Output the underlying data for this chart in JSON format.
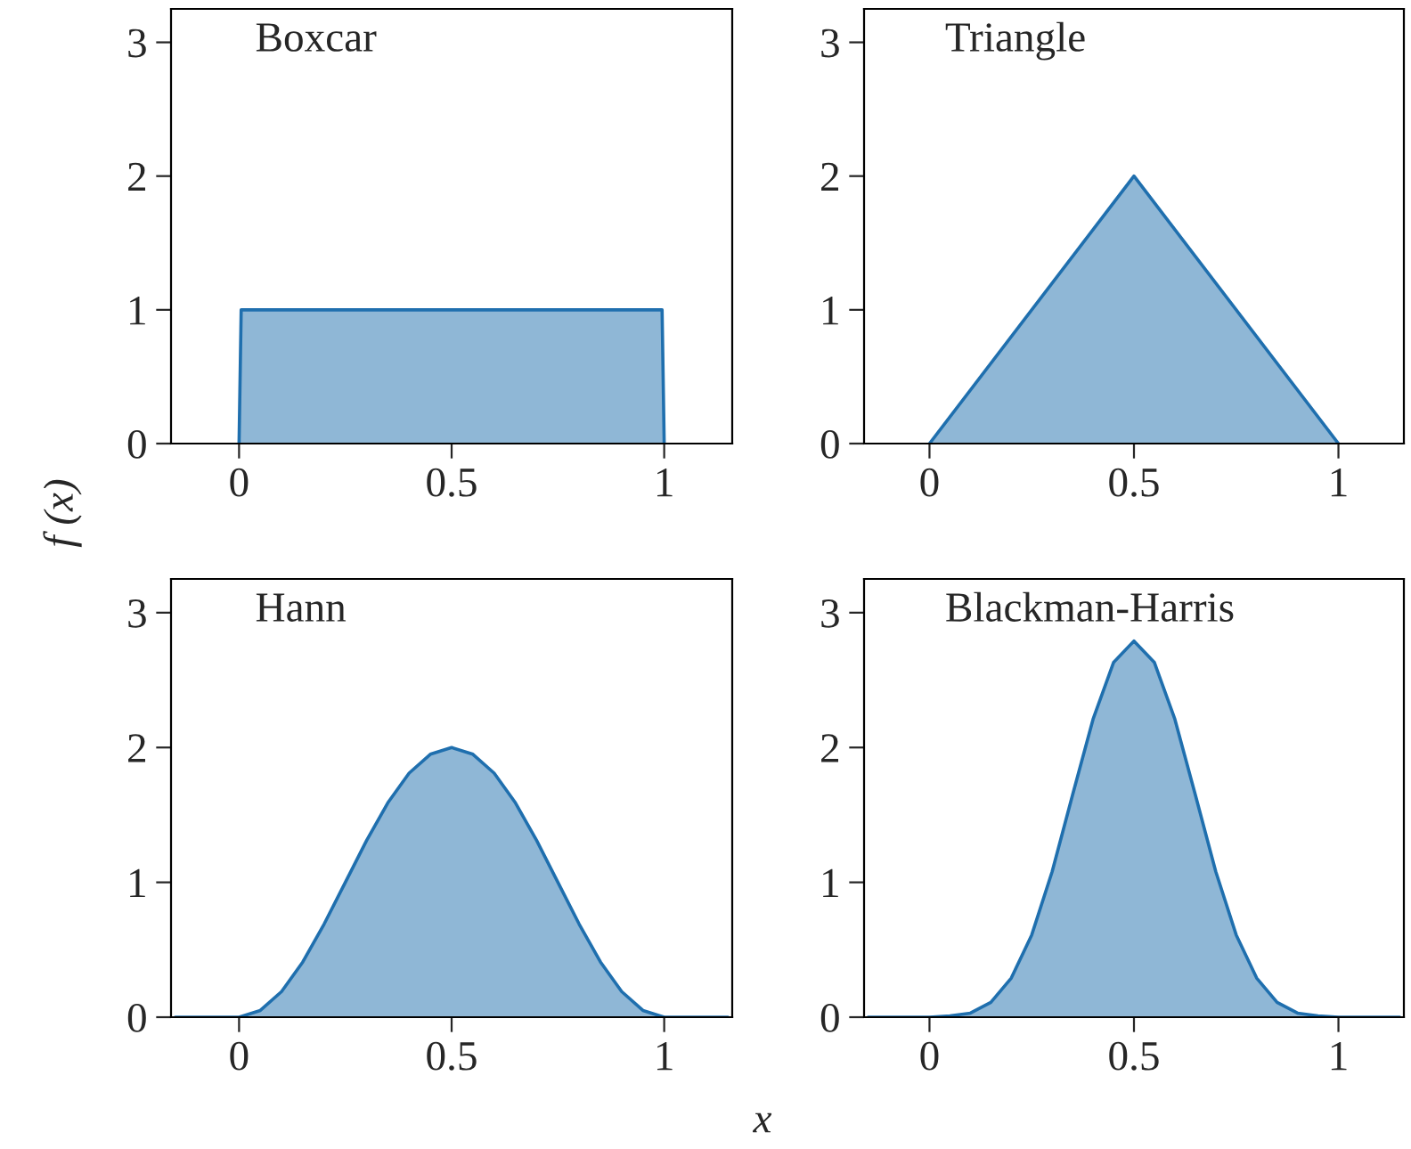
{
  "chart_data": [
    {
      "type": "area",
      "title": "Boxcar",
      "ylabel": "f (x)",
      "xlim": [
        -0.16,
        1.16
      ],
      "ylim": [
        0,
        3.25
      ],
      "xticks": [
        0,
        0.5,
        1
      ],
      "yticks": [
        0,
        1,
        2,
        3
      ],
      "grid": false,
      "legend": false,
      "series": [
        {
          "color": "#1f6fae",
          "x": [
            0,
            0.005,
            0.995,
            1
          ],
          "values": [
            0,
            1,
            1,
            0
          ]
        }
      ]
    },
    {
      "type": "area",
      "title": "Triangle",
      "xlim": [
        -0.16,
        1.16
      ],
      "ylim": [
        0,
        3.25
      ],
      "xticks": [
        0,
        0.5,
        1
      ],
      "yticks": [
        0,
        1,
        2,
        3
      ],
      "grid": false,
      "legend": false,
      "series": [
        {
          "color": "#1f6fae",
          "x": [
            0,
            0.5,
            1
          ],
          "values": [
            0,
            2,
            0
          ]
        }
      ]
    },
    {
      "type": "area",
      "title": "Hann",
      "xlabel": "x",
      "xlim": [
        -0.16,
        1.16
      ],
      "ylim": [
        0,
        3.25
      ],
      "xticks": [
        0,
        0.5,
        1
      ],
      "yticks": [
        0,
        1,
        2,
        3
      ],
      "grid": false,
      "legend": false,
      "series": [
        {
          "color": "#1f6fae",
          "x": [
            -0.15,
            0,
            0.05,
            0.1,
            0.15,
            0.2,
            0.25,
            0.3,
            0.35,
            0.4,
            0.45,
            0.5,
            0.55,
            0.6,
            0.65,
            0.7,
            0.75,
            0.8,
            0.85,
            0.9,
            0.95,
            1,
            1.15
          ],
          "values": [
            0,
            0,
            0.05,
            0.19,
            0.41,
            0.69,
            1,
            1.31,
            1.59,
            1.81,
            1.95,
            2,
            1.95,
            1.81,
            1.59,
            1.31,
            1,
            0.69,
            0.41,
            0.19,
            0.05,
            0,
            0
          ]
        }
      ]
    },
    {
      "type": "area",
      "title": "Blackman-Harris",
      "xlim": [
        -0.16,
        1.16
      ],
      "ylim": [
        0,
        3.25
      ],
      "xticks": [
        0,
        0.5,
        1
      ],
      "yticks": [
        0,
        1,
        2,
        3
      ],
      "grid": false,
      "legend": false,
      "series": [
        {
          "color": "#1f6fae",
          "x": [
            -0.15,
            0,
            0.05,
            0.1,
            0.15,
            0.2,
            0.25,
            0.3,
            0.35,
            0.4,
            0.45,
            0.5,
            0.55,
            0.6,
            0.65,
            0.7,
            0.75,
            0.8,
            0.85,
            0.9,
            0.95,
            1,
            1.15
          ],
          "values": [
            0,
            0,
            0.01,
            0.03,
            0.11,
            0.29,
            0.61,
            1.08,
            1.65,
            2.21,
            2.63,
            2.79,
            2.63,
            2.21,
            1.65,
            1.08,
            0.61,
            0.29,
            0.11,
            0.03,
            0.01,
            0,
            0
          ]
        }
      ]
    }
  ]
}
